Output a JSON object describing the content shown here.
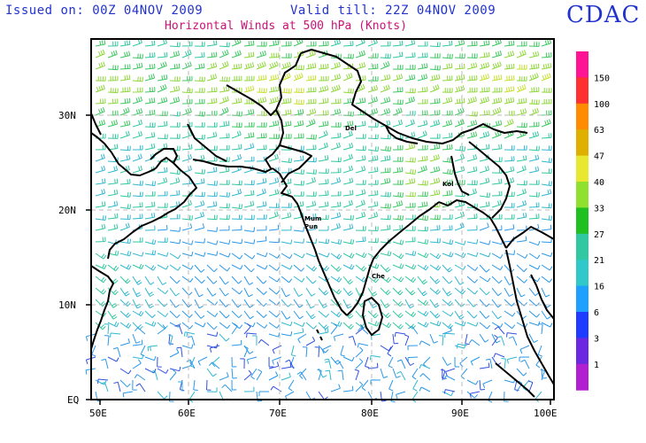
{
  "header": {
    "issued": "Issued on: 00Z 04NOV 2009",
    "valid": "Valid till: 22Z 04NOV 2009",
    "subtitle": "Horizontal Winds at 500 hPa (Knots)",
    "logo": "CDAC"
  },
  "axes": {
    "lat_labels": [
      "30N",
      "20N",
      "10N",
      "EQ"
    ],
    "lon_labels": [
      "50E",
      "60E",
      "70E",
      "80E",
      "90E",
      "100E"
    ]
  },
  "cities": [
    "Del",
    "Mum",
    "Pun",
    "Che",
    "Kol"
  ],
  "legend": {
    "levels": [
      {
        "label": "150",
        "color": "#ff1493"
      },
      {
        "label": "100",
        "color": "#ff3030"
      },
      {
        "label": "63",
        "color": "#ff8c00"
      },
      {
        "label": "47",
        "color": "#e0b000"
      },
      {
        "label": "40",
        "color": "#e8e830"
      },
      {
        "label": "33",
        "color": "#90e030"
      },
      {
        "label": "27",
        "color": "#20c020"
      },
      {
        "label": "21",
        "color": "#30c8a0"
      },
      {
        "label": "16",
        "color": "#30c8c8"
      },
      {
        "label": "6",
        "color": "#1ea0ff"
      },
      {
        "label": "3",
        "color": "#1e3cff"
      },
      {
        "label": "1",
        "color": "#6a28e0"
      },
      {
        "label": "",
        "color": "#b020d0"
      }
    ]
  }
}
